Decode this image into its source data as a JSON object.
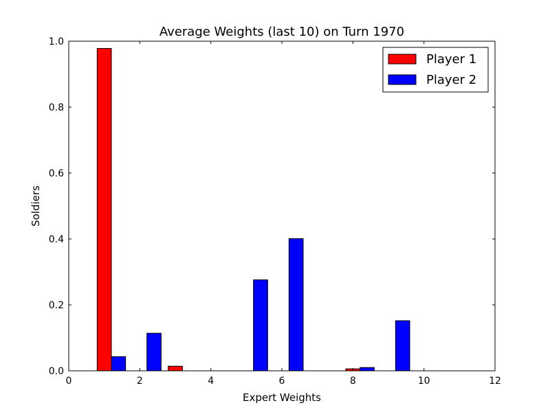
{
  "chart_data": {
    "type": "bar",
    "title": "Average Weights (last 10) on Turn 1970",
    "xlabel": "Expert Weights",
    "ylabel": "Soldiers",
    "xlim": [
      0,
      12
    ],
    "ylim": [
      0,
      1.0
    ],
    "xticks": [
      0,
      2,
      4,
      6,
      8,
      10,
      12
    ],
    "yticks": [
      0.0,
      0.2,
      0.4,
      0.6,
      0.8,
      1.0
    ],
    "xtick_labels": [
      "0",
      "2",
      "4",
      "6",
      "8",
      "10",
      "12"
    ],
    "ytick_labels": [
      "0.0",
      "0.2",
      "0.4",
      "0.6",
      "0.8",
      "1.0"
    ],
    "grid": false,
    "legend_position": "top-right",
    "categories": [
      1,
      2,
      3,
      4,
      5,
      6,
      7,
      8,
      9,
      10
    ],
    "bar_width": 0.4,
    "series": [
      {
        "name": "Player 1",
        "color": "#ff0000",
        "offset": 0,
        "values": [
          0.978,
          0.0,
          0.014,
          0.0,
          0.0,
          0.0,
          0.0,
          0.006,
          0.0,
          0.0
        ]
      },
      {
        "name": "Player 2",
        "color": "#0000ff",
        "offset": 0.4,
        "values": [
          0.043,
          0.114,
          0.0,
          0.0,
          0.276,
          0.401,
          0.0,
          0.01,
          0.152,
          0.0
        ]
      }
    ]
  }
}
